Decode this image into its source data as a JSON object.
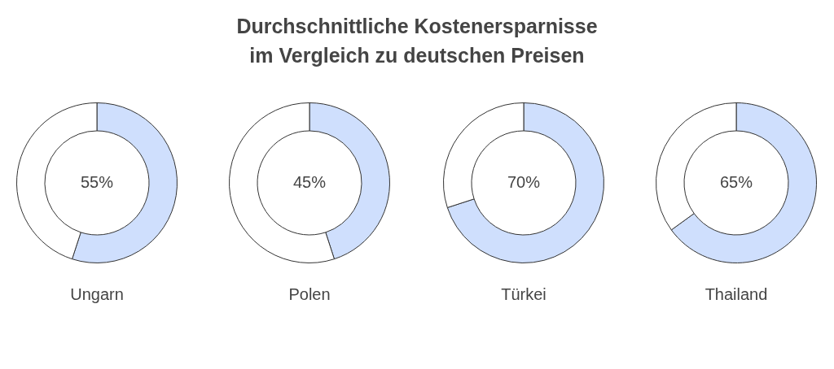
{
  "chart_data": [
    {
      "type": "donut",
      "title": "Durchschnittliche Kostenersparnisse\nim Vergleich zu deutschen Preisen",
      "xlabel": "Ungarn",
      "categories": [
        null,
        null
      ],
      "values": [
        55,
        45
      ],
      "colors": [
        "#cfdffd",
        "#ffffff"
      ],
      "value_labels": [
        "55%",
        null
      ]
    },
    {
      "type": "donut",
      "xlabel": "Polen",
      "categories": [
        null,
        null
      ],
      "values": [
        45,
        55
      ],
      "colors": [
        "#cfdffd",
        "#ffffff"
      ],
      "value_labels": [
        "45%",
        null
      ]
    },
    {
      "type": "donut",
      "xlabel": "Türkei",
      "categories": [
        null,
        null
      ],
      "values": [
        70,
        30
      ],
      "colors": [
        "#cfdffd",
        "#ffffff"
      ],
      "value_labels": [
        "70%",
        null
      ]
    },
    {
      "type": "donut",
      "xlabel": "Thailand",
      "categories": [
        null,
        null
      ],
      "values": [
        65,
        35
      ],
      "colors": [
        "#cfdffd",
        "#ffffff"
      ],
      "value_labels": [
        "65%",
        null
      ]
    }
  ]
}
